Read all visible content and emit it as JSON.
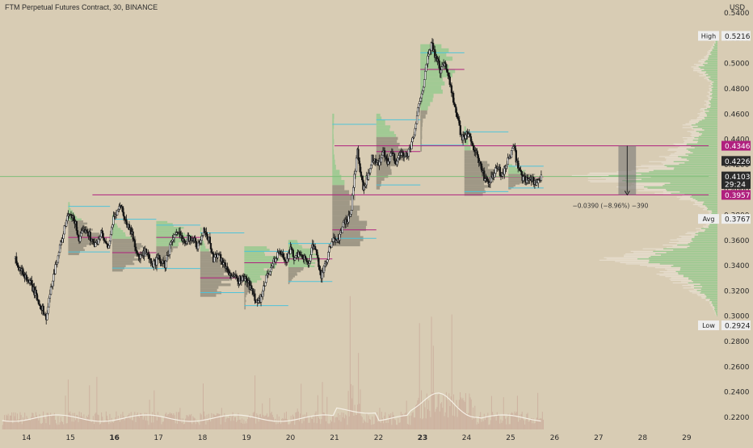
{
  "header": {
    "title": "FTM Perpetual Futures Contract, 30, BINANCE",
    "currency": "USD"
  },
  "colors": {
    "background": "#d8ccb4",
    "candle": "#161616",
    "volume": "#c9a99a",
    "profile_green": "#8fc98a",
    "profile_gray": "#7a7468",
    "poc_line": "#b0207e",
    "value_line": "#4fc3d9",
    "axis_text": "#2b2b2b",
    "ma_line": "#f5f0e6",
    "tag_magenta": "#b0207e",
    "tag_dark": "#2a2a2a",
    "tag_light": "#eeeeee"
  },
  "chart_data": {
    "type": "candlestick",
    "y_ticks": [
      0.22,
      0.24,
      0.26,
      0.28,
      0.3,
      0.32,
      0.34,
      0.36,
      0.38,
      0.4,
      0.42,
      0.44,
      0.46,
      0.48,
      0.5,
      0.52,
      0.54
    ],
    "y_tick_labels": [
      "0.2200",
      "0.2400",
      "0.2600",
      "0.2800",
      "0.3000",
      "0.3200",
      "0.3400",
      "0.3600",
      "0.3800",
      "0.4000",
      "0.4200",
      "0.4400",
      "0.4600",
      "0.4800",
      "0.5000",
      "0.5200",
      "0.5400"
    ],
    "x_ticks": [
      {
        "label": "14",
        "bold": false,
        "day": 14.0
      },
      {
        "label": "15",
        "bold": false,
        "day": 15.0
      },
      {
        "label": "16",
        "bold": true,
        "day": 16.0
      },
      {
        "label": "17",
        "bold": false,
        "day": 17.0
      },
      {
        "label": "18",
        "bold": false,
        "day": 18.0
      },
      {
        "label": "19",
        "bold": false,
        "day": 19.0
      },
      {
        "label": "20",
        "bold": false,
        "day": 20.0
      },
      {
        "label": "21",
        "bold": false,
        "day": 21.0
      },
      {
        "label": "22",
        "bold": false,
        "day": 22.0
      },
      {
        "label": "23",
        "bold": true,
        "day": 23.0
      },
      {
        "label": "24",
        "bold": false,
        "day": 24.0
      },
      {
        "label": "25",
        "bold": false,
        "day": 25.0
      },
      {
        "label": "26",
        "bold": false,
        "day": 26.0
      },
      {
        "label": "27",
        "bold": false,
        "day": 27.0
      },
      {
        "label": "28",
        "bold": false,
        "day": 28.0
      },
      {
        "label": "29",
        "bold": false,
        "day": 29.0
      }
    ],
    "price_path": [
      [
        13.75,
        0.345
      ],
      [
        13.9,
        0.335
      ],
      [
        14.1,
        0.325
      ],
      [
        14.3,
        0.31
      ],
      [
        14.45,
        0.298
      ],
      [
        14.6,
        0.33
      ],
      [
        14.8,
        0.36
      ],
      [
        14.95,
        0.38
      ],
      [
        15.1,
        0.375
      ],
      [
        15.2,
        0.36
      ],
      [
        15.35,
        0.37
      ],
      [
        15.55,
        0.355
      ],
      [
        15.7,
        0.365
      ],
      [
        15.85,
        0.352
      ],
      [
        16.0,
        0.38
      ],
      [
        16.15,
        0.388
      ],
      [
        16.25,
        0.375
      ],
      [
        16.4,
        0.365
      ],
      [
        16.55,
        0.345
      ],
      [
        16.7,
        0.35
      ],
      [
        16.85,
        0.34
      ],
      [
        17.0,
        0.345
      ],
      [
        17.15,
        0.34
      ],
      [
        17.3,
        0.36
      ],
      [
        17.45,
        0.365
      ],
      [
        17.6,
        0.36
      ],
      [
        17.75,
        0.362
      ],
      [
        17.9,
        0.355
      ],
      [
        18.05,
        0.368
      ],
      [
        18.15,
        0.36
      ],
      [
        18.25,
        0.345
      ],
      [
        18.35,
        0.35
      ],
      [
        18.5,
        0.34
      ],
      [
        18.65,
        0.332
      ],
      [
        18.8,
        0.328
      ],
      [
        18.95,
        0.33
      ],
      [
        19.05,
        0.325
      ],
      [
        19.15,
        0.318
      ],
      [
        19.25,
        0.31
      ],
      [
        19.35,
        0.315
      ],
      [
        19.45,
        0.33
      ],
      [
        19.6,
        0.342
      ],
      [
        19.75,
        0.35
      ],
      [
        19.9,
        0.345
      ],
      [
        20.0,
        0.352
      ],
      [
        20.1,
        0.345
      ],
      [
        20.25,
        0.35
      ],
      [
        20.4,
        0.34
      ],
      [
        20.5,
        0.355
      ],
      [
        20.6,
        0.348
      ],
      [
        20.7,
        0.332
      ],
      [
        20.8,
        0.34
      ],
      [
        20.9,
        0.355
      ],
      [
        21.0,
        0.36
      ],
      [
        21.1,
        0.362
      ],
      [
        21.2,
        0.372
      ],
      [
        21.3,
        0.375
      ],
      [
        21.38,
        0.385
      ],
      [
        21.45,
        0.41
      ],
      [
        21.52,
        0.43
      ],
      [
        21.58,
        0.415
      ],
      [
        21.65,
        0.4
      ],
      [
        21.75,
        0.41
      ],
      [
        21.85,
        0.425
      ],
      [
        22.0,
        0.42
      ],
      [
        22.1,
        0.43
      ],
      [
        22.2,
        0.42
      ],
      [
        22.3,
        0.428
      ],
      [
        22.4,
        0.422
      ],
      [
        22.5,
        0.43
      ],
      [
        22.6,
        0.425
      ],
      [
        22.75,
        0.435
      ],
      [
        22.85,
        0.45
      ],
      [
        22.92,
        0.47
      ],
      [
        23.0,
        0.48
      ],
      [
        23.1,
        0.5
      ],
      [
        23.2,
        0.515
      ],
      [
        23.3,
        0.505
      ],
      [
        23.4,
        0.495
      ],
      [
        23.5,
        0.5
      ],
      [
        23.6,
        0.49
      ],
      [
        23.7,
        0.47
      ],
      [
        23.8,
        0.455
      ],
      [
        23.9,
        0.44
      ],
      [
        24.0,
        0.445
      ],
      [
        24.1,
        0.44
      ],
      [
        24.2,
        0.43
      ],
      [
        24.3,
        0.42
      ],
      [
        24.4,
        0.41
      ],
      [
        24.5,
        0.405
      ],
      [
        24.6,
        0.41
      ],
      [
        24.7,
        0.418
      ],
      [
        24.8,
        0.41
      ],
      [
        24.9,
        0.42
      ],
      [
        25.0,
        0.428
      ],
      [
        25.08,
        0.432
      ],
      [
        25.15,
        0.42
      ],
      [
        25.25,
        0.41
      ],
      [
        25.35,
        0.408
      ],
      [
        25.45,
        0.41
      ],
      [
        25.55,
        0.405
      ],
      [
        25.65,
        0.408
      ],
      [
        25.72,
        0.4103
      ]
    ],
    "volume_profile_right": [
      [
        0.3,
        0.01
      ],
      [
        0.305,
        0.03
      ],
      [
        0.31,
        0.06
      ],
      [
        0.315,
        0.12
      ],
      [
        0.32,
        0.2
      ],
      [
        0.325,
        0.28
      ],
      [
        0.33,
        0.38
      ],
      [
        0.335,
        0.42
      ],
      [
        0.34,
        0.55
      ],
      [
        0.345,
        0.85
      ],
      [
        0.35,
        0.62
      ],
      [
        0.355,
        0.4
      ],
      [
        0.36,
        0.35
      ],
      [
        0.365,
        0.22
      ],
      [
        0.37,
        0.12
      ],
      [
        0.375,
        0.06
      ],
      [
        0.38,
        0.05
      ],
      [
        0.385,
        0.12
      ],
      [
        0.39,
        0.2
      ],
      [
        0.395,
        0.32
      ],
      [
        0.4,
        0.6
      ],
      [
        0.405,
        0.78
      ],
      [
        0.41,
        1.0
      ],
      [
        0.415,
        0.72
      ],
      [
        0.42,
        0.5
      ],
      [
        0.425,
        0.42
      ],
      [
        0.43,
        0.38
      ],
      [
        0.435,
        0.32
      ],
      [
        0.44,
        0.26
      ],
      [
        0.445,
        0.2
      ],
      [
        0.45,
        0.24
      ],
      [
        0.455,
        0.18
      ],
      [
        0.46,
        0.14
      ],
      [
        0.465,
        0.1
      ],
      [
        0.47,
        0.09
      ],
      [
        0.475,
        0.07
      ],
      [
        0.48,
        0.06
      ],
      [
        0.485,
        0.05
      ],
      [
        0.49,
        0.12
      ],
      [
        0.495,
        0.2
      ],
      [
        0.5,
        0.15
      ],
      [
        0.505,
        0.1
      ],
      [
        0.51,
        0.06
      ],
      [
        0.515,
        0.03
      ],
      [
        0.52,
        0.01
      ]
    ],
    "profiles": [
      {
        "day0": 14.95,
        "day1": 15.9,
        "lo": 0.348,
        "hi": 0.39,
        "poc": 0.362,
        "green_from": 0.375
      },
      {
        "day0": 15.95,
        "day1": 16.95,
        "lo": 0.335,
        "hi": 0.38,
        "poc": 0.35,
        "green_from": 0.36
      },
      {
        "day0": 16.95,
        "day1": 17.95,
        "lo": 0.335,
        "hi": 0.375,
        "poc": 0.362,
        "green_from": 0.355
      },
      {
        "day0": 17.95,
        "day1": 18.95,
        "lo": 0.315,
        "hi": 0.37,
        "poc": 0.33,
        "green_from": 0.35
      },
      {
        "day0": 18.95,
        "day1": 19.95,
        "lo": 0.305,
        "hi": 0.355,
        "poc": 0.342,
        "green_from": 0.325
      },
      {
        "day0": 19.95,
        "day1": 20.95,
        "lo": 0.325,
        "hi": 0.36,
        "poc": 0.345,
        "green_from": 0.338
      },
      {
        "day0": 20.95,
        "day1": 21.95,
        "lo": 0.355,
        "hi": 0.46,
        "poc": 0.368,
        "green_from": 0.4
      },
      {
        "day0": 21.95,
        "day1": 22.95,
        "lo": 0.4,
        "hi": 0.46,
        "poc": 0.43,
        "green_from": 0.44
      },
      {
        "day0": 22.95,
        "day1": 23.95,
        "lo": 0.43,
        "hi": 0.515,
        "poc": 0.495,
        "green_from": 0.46
      },
      {
        "day0": 23.95,
        "day1": 24.95,
        "lo": 0.395,
        "hi": 0.45,
        "poc": 0.41,
        "green_from": 0.43
      },
      {
        "day0": 24.95,
        "day1": 25.75,
        "lo": 0.4,
        "hi": 0.42,
        "poc": 0.41,
        "green_from": 0.412
      }
    ],
    "horizontal_lines": [
      {
        "price": 0.4346,
        "from_day": 21.0,
        "to_day": 29.5,
        "kind": "poc"
      },
      {
        "price": 0.3957,
        "from_day": 15.5,
        "to_day": 29.5,
        "kind": "poc"
      },
      {
        "price": 0.4103,
        "from_day": 13.4,
        "to_day": 29.5,
        "kind": "current"
      }
    ],
    "measure": {
      "label": "−0.0390 (−8.96%) −390",
      "top": 0.4346,
      "bottom": 0.3957,
      "day0": 27.45,
      "day1": 27.85
    },
    "price_tags": [
      {
        "label": "High",
        "value": "0.5216",
        "price": 0.5216,
        "style": "light"
      },
      {
        "label": "",
        "value": "0.4346",
        "price": 0.4346,
        "style": "magenta"
      },
      {
        "label": "",
        "value": "0.4226",
        "price": 0.4226,
        "style": "dark"
      },
      {
        "label": "",
        "value": "0.4103",
        "price": 0.4103,
        "style": "dark"
      },
      {
        "label": "",
        "value": "29:24",
        "price": 0.4043,
        "style": "dark"
      },
      {
        "label": "",
        "value": "0.3957",
        "price": 0.3957,
        "style": "magenta"
      },
      {
        "label": "Avg",
        "value": "0.3767",
        "price": 0.3767,
        "style": "light"
      },
      {
        "label": "Low",
        "value": "0.2924",
        "price": 0.2924,
        "style": "light"
      }
    ],
    "ylim": [
      0.21,
      0.55
    ],
    "xlim": [
      13.4,
      29.7
    ]
  }
}
